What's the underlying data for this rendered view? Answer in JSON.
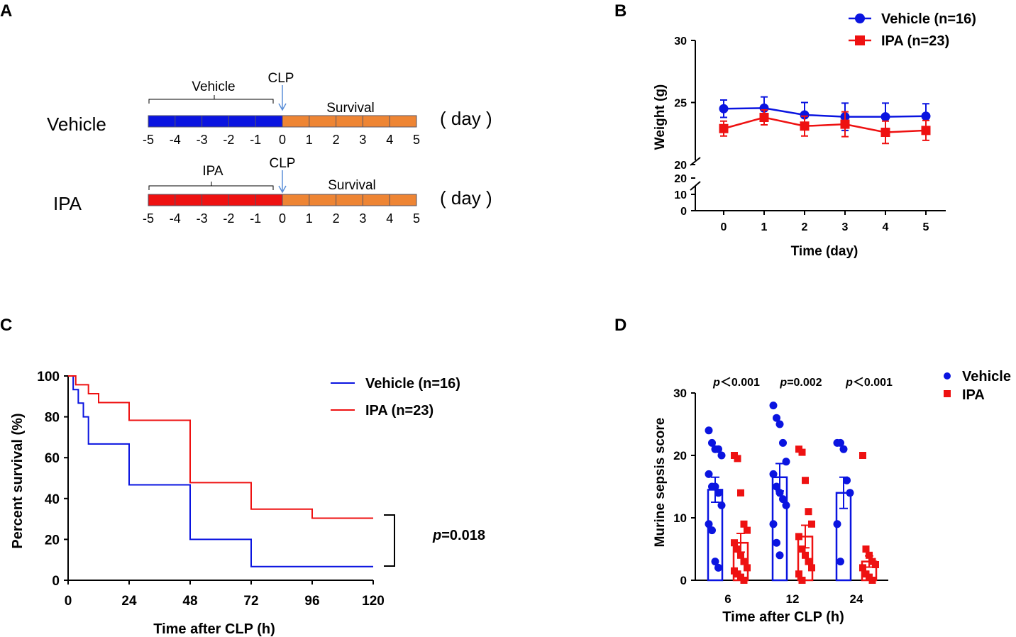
{
  "colors": {
    "vehicle": "#0a14e0",
    "ipa": "#ee1111",
    "survival_bar": "#ee8534",
    "arrow": "#5b8fd8",
    "axis": "#000000"
  },
  "panel_letters": {
    "a": "A",
    "b": "B",
    "c": "C",
    "d": "D"
  },
  "chart_data": [
    {
      "panel": "A",
      "type": "diagram",
      "unit_label": "( day )",
      "rows": [
        {
          "group": "Vehicle",
          "pretreat_label": "Vehicle",
          "event_label": "CLP",
          "survival_label": "Survival",
          "ticks": [
            "-5",
            "-4",
            "-3",
            "-2",
            "-1",
            "0",
            "1",
            "2",
            "3",
            "4",
            "5"
          ]
        },
        {
          "group": "IPA",
          "pretreat_label": "IPA",
          "event_label": "CLP",
          "survival_label": "Survival",
          "ticks": [
            "-5",
            "-4",
            "-3",
            "-2",
            "-1",
            "0",
            "1",
            "2",
            "3",
            "4",
            "5"
          ]
        }
      ]
    },
    {
      "panel": "B",
      "type": "line",
      "xlabel": "Time (day)",
      "ylabel": "Weight  (g)",
      "x": [
        0,
        1,
        2,
        3,
        4,
        5
      ],
      "x_ticks": [
        "0",
        "1",
        "2",
        "3",
        "4",
        "5"
      ],
      "y_ticks_upper": [
        "30",
        "25",
        "20"
      ],
      "y_ticks_lower": [
        "20",
        "10",
        "0"
      ],
      "ylim_upper": [
        20,
        30
      ],
      "ylim_lower": [
        0,
        20
      ],
      "series": [
        {
          "name": "Vehicle (n=16)",
          "values": [
            24.5,
            24.55,
            24.0,
            23.85,
            23.85,
            23.9
          ],
          "errors": [
            0.7,
            0.9,
            1.0,
            1.1,
            1.1,
            1.0
          ]
        },
        {
          "name": "IPA (n=23)",
          "values": [
            22.9,
            23.8,
            23.1,
            23.25,
            22.6,
            22.75
          ],
          "errors": [
            0.6,
            0.6,
            0.8,
            1.0,
            0.9,
            0.8
          ]
        }
      ]
    },
    {
      "panel": "C",
      "type": "line",
      "subtype": "kaplan-meier",
      "xlabel": "Time after CLP (h)",
      "ylabel": "Percent survival (%)",
      "x_ticks": [
        "0",
        "24",
        "48",
        "72",
        "96",
        "120"
      ],
      "y_ticks": [
        "0",
        "20",
        "40",
        "60",
        "80",
        "100"
      ],
      "xlim": [
        0,
        120
      ],
      "ylim": [
        0,
        100
      ],
      "p_label": "p",
      "p_value": "=0.018",
      "series": [
        {
          "name": "Vehicle (n=16)",
          "steps": [
            [
              0,
              100
            ],
            [
              2,
              93.3
            ],
            [
              4,
              86.7
            ],
            [
              6,
              80
            ],
            [
              8,
              66.7
            ],
            [
              24,
              46.7
            ],
            [
              48,
              20
            ],
            [
              72,
              6.7
            ],
            [
              120,
              6.7
            ]
          ]
        },
        {
          "name": "IPA (n=23)",
          "steps": [
            [
              0,
              100
            ],
            [
              3,
              95.7
            ],
            [
              8,
              91.3
            ],
            [
              12,
              87
            ],
            [
              24,
              78.3
            ],
            [
              48,
              47.8
            ],
            [
              72,
              34.8
            ],
            [
              96,
              30.4
            ],
            [
              120,
              30.4
            ]
          ]
        }
      ]
    },
    {
      "panel": "D",
      "type": "bar",
      "xlabel": "Time after CLP (h)",
      "ylabel": "Murine sepsis score",
      "categories": [
        "6",
        "12",
        "24"
      ],
      "y_ticks": [
        "0",
        "10",
        "20",
        "30"
      ],
      "ylim": [
        0,
        30
      ],
      "p_labels": [
        {
          "italic": "p",
          "rest": "＜0.001"
        },
        {
          "italic": "p",
          "rest": "=0.002"
        },
        {
          "italic": "p",
          "rest": "＜0.001"
        }
      ],
      "series": [
        {
          "name": "Vehicle",
          "values": [
            14.5,
            16.5,
            14.0
          ],
          "errors": [
            2.0,
            2.2,
            2.5
          ],
          "points": [
            [
              24,
              22,
              21,
              21,
              20,
              17,
              15,
              15,
              14,
              12,
              9,
              8,
              3,
              2
            ],
            [
              28,
              26,
              25,
              22,
              19,
              17,
              15,
              14,
              13,
              12,
              9,
              6,
              4
            ],
            [
              22,
              22,
              21,
              16,
              14,
              9,
              3
            ]
          ]
        },
        {
          "name": "IPA",
          "values": [
            6.0,
            7.0,
            3.0
          ],
          "errors": [
            1.5,
            1.8,
            0.9
          ],
          "points": [
            [
              20,
              19.5,
              14,
              9,
              8,
              6,
              5,
              4,
              3,
              2,
              1.5,
              1,
              0.5,
              0
            ],
            [
              21,
              20.5,
              16,
              11,
              9,
              7,
              5,
              4,
              3,
              2,
              1,
              0
            ],
            [
              20,
              5,
              4,
              3,
              2.5,
              2,
              1,
              0.5,
              0
            ]
          ]
        }
      ]
    }
  ]
}
